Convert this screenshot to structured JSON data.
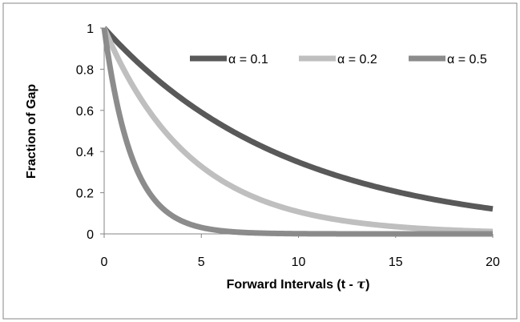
{
  "chart_data": {
    "type": "line",
    "xlabel_main": "Forward Intervals  (t - ",
    "xlabel_symbol": "τ",
    "xlabel_close": ")",
    "ylabel": "Fraction of Gap",
    "xlim": [
      0,
      20
    ],
    "ylim": [
      0,
      1
    ],
    "x_ticks": [
      "0",
      "5",
      "10",
      "15",
      "20"
    ],
    "y_ticks": [
      "0",
      "0.2",
      "0.4",
      "0.6",
      "0.8",
      "1"
    ],
    "grid": false,
    "legend_position": "top-right",
    "series": [
      {
        "name": "α = 0.1",
        "alpha": 0.1,
        "color": "#595959",
        "x": [
          0,
          1,
          2,
          3,
          4,
          5,
          6,
          7,
          8,
          9,
          10,
          11,
          12,
          13,
          14,
          15,
          16,
          17,
          18,
          19,
          20
        ],
        "y": [
          1,
          0.9,
          0.81,
          0.73,
          0.66,
          0.59,
          0.53,
          0.48,
          0.43,
          0.39,
          0.35,
          0.31,
          0.28,
          0.25,
          0.23,
          0.21,
          0.19,
          0.17,
          0.15,
          0.14,
          0.12
        ]
      },
      {
        "name": "α = 0.2",
        "alpha": 0.2,
        "color": "#bfbfbf",
        "x": [
          0,
          1,
          2,
          3,
          4,
          5,
          6,
          7,
          8,
          9,
          10,
          11,
          12,
          13,
          14,
          15,
          16,
          17,
          18,
          19,
          20
        ],
        "y": [
          1,
          0.8,
          0.64,
          0.51,
          0.41,
          0.33,
          0.26,
          0.21,
          0.17,
          0.13,
          0.11,
          0.09,
          0.07,
          0.05,
          0.04,
          0.04,
          0.03,
          0.02,
          0.02,
          0.01,
          0.01
        ]
      },
      {
        "name": "α = 0.5",
        "alpha": 0.5,
        "color": "#8c8c8c",
        "x": [
          0,
          1,
          2,
          3,
          4,
          5,
          6,
          7,
          8,
          9,
          10,
          11,
          12,
          13,
          14,
          15,
          16,
          17,
          18,
          19,
          20
        ],
        "y": [
          1,
          0.5,
          0.25,
          0.13,
          0.06,
          0.03,
          0.02,
          0.01,
          0,
          0,
          0,
          0,
          0,
          0,
          0,
          0,
          0,
          0,
          0,
          0,
          0
        ]
      }
    ]
  },
  "colors": {
    "axis": "#868686",
    "frame": "#868686"
  }
}
